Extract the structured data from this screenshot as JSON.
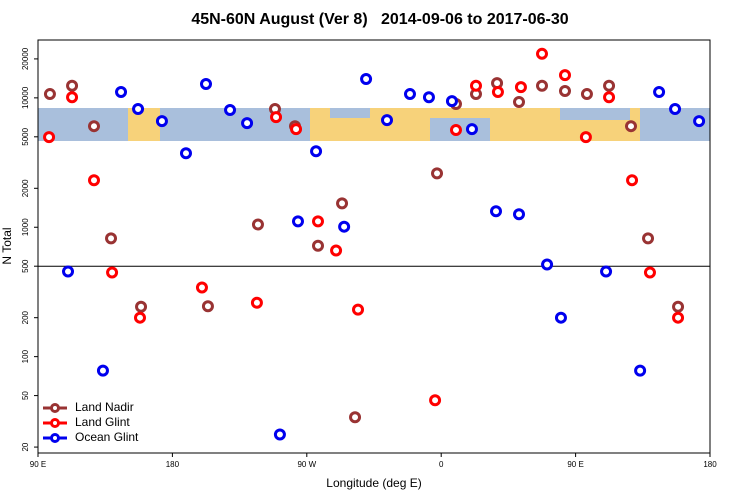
{
  "chart_data": {
    "type": "scatter",
    "title": "45N-60N August (Ver 8)   2014-09-06 to 2017-06-30",
    "x_label": "Longitude (deg E)",
    "y_label": "N Total",
    "xlim": [
      90,
      540
    ],
    "xticks": [
      {
        "value": 90,
        "label": "90 E"
      },
      {
        "value": 180,
        "label": "180"
      },
      {
        "value": 270,
        "label": "90 W"
      },
      {
        "value": 360,
        "label": "0"
      },
      {
        "value": 450,
        "label": "90 E"
      },
      {
        "value": 540,
        "label": "180"
      }
    ],
    "ylim": [
      18,
      28000
    ],
    "log_y": true,
    "yticks": [
      20,
      50,
      100,
      200,
      500,
      1000,
      2000,
      5000,
      10000,
      20000
    ],
    "hline": 500,
    "legend": "bottom-left",
    "series": [
      {
        "name": "Land Nadir",
        "color": "#993333",
        "x": [
          98,
          112.8,
          127.5,
          138.9,
          159,
          203.8,
          237.3,
          248.7,
          262.1,
          277.5,
          293.6,
          302.3,
          357.2,
          369.9,
          383.3,
          397.4,
          412.1,
          427.5,
          442.9,
          457.6,
          472.4,
          487.1,
          498.5,
          518.6
        ],
        "values": [
          10700,
          12400,
          6040,
          820,
          243,
          245,
          1050,
          8200,
          6040,
          720,
          1530,
          34,
          2610,
          8960,
          10700,
          13000,
          9290,
          12400,
          11300,
          10700,
          12400,
          6040,
          820,
          243
        ]
      },
      {
        "name": "Land Glint",
        "color": "#ff0000",
        "x": [
          97.4,
          112.8,
          127.5,
          139.6,
          158.3,
          199.8,
          236.6,
          249.4,
          262.8,
          277.5,
          289.6,
          304.3,
          355.9,
          369.9,
          383.3,
          398,
          413.4,
          427.5,
          442.9,
          456.9,
          472.4,
          487.8,
          499.8,
          518.6
        ],
        "values": [
          4970,
          10100,
          2310,
          447,
          200,
          342,
          261,
          7100,
          5730,
          1110,
          661,
          231,
          46,
          5640,
          12400,
          11100,
          12100,
          21900,
          15000,
          4970,
          10100,
          2310,
          447,
          200
        ]
      },
      {
        "name": "Ocean Glint",
        "color": "#0000ee",
        "x": [
          110.1,
          133.5,
          145.6,
          157,
          173,
          189.1,
          202.5,
          218.6,
          230,
          252,
          264.1,
          276.2,
          295,
          309.7,
          323.7,
          339.1,
          351.8,
          367.2,
          380.6,
          396.7,
          412.1,
          430.9,
          440.2,
          470.4,
          493.2,
          505.9,
          516.6,
          532.7
        ],
        "values": [
          455,
          78,
          11100,
          8200,
          6610,
          3730,
          12800,
          8050,
          6380,
          25,
          1110,
          3870,
          1010,
          14000,
          6730,
          10700,
          10100,
          9440,
          5730,
          1330,
          1260,
          515,
          200,
          455,
          78,
          11100,
          8200,
          6610
        ]
      }
    ]
  }
}
